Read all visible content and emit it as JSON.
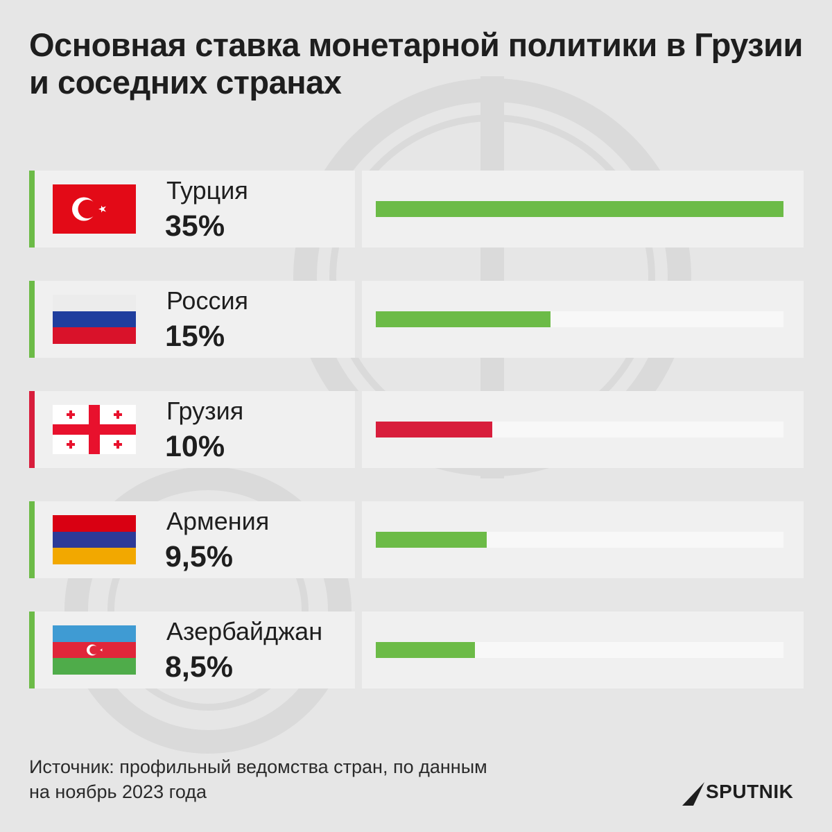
{
  "title": "Основная ставка монетарной политики в Грузии и соседних странах",
  "source_line1": "Источник: профильный ведомства стран, по данным",
  "source_line2": "на ноябрь 2023 года",
  "brand": "SPUTNIK",
  "colors": {
    "green": "#6cbb47",
    "red": "#d81e3c",
    "text": "#1e1e1e",
    "background": "#e6e6e6"
  },
  "chart_data": {
    "type": "bar",
    "orientation": "horizontal",
    "title": "Основная ставка монетарной политики в Грузии и соседних странах",
    "categories": [
      "Турция",
      "Россия",
      "Грузия",
      "Армения",
      "Азербайджан"
    ],
    "values": [
      35,
      15,
      10,
      9.5,
      8.5
    ],
    "value_labels": [
      "35%",
      "15%",
      "10%",
      "9,5%",
      "8,5%"
    ],
    "unit": "%",
    "xlim": [
      0,
      35
    ],
    "highlight": "Грузия",
    "bar_colors": [
      "#6cbb47",
      "#6cbb47",
      "#d81e3c",
      "#6cbb47",
      "#6cbb47"
    ],
    "flags": [
      "turkey-flag-icon",
      "russia-flag-icon",
      "georgia-flag-icon",
      "armenia-flag-icon",
      "azerbaijan-flag-icon"
    ]
  }
}
